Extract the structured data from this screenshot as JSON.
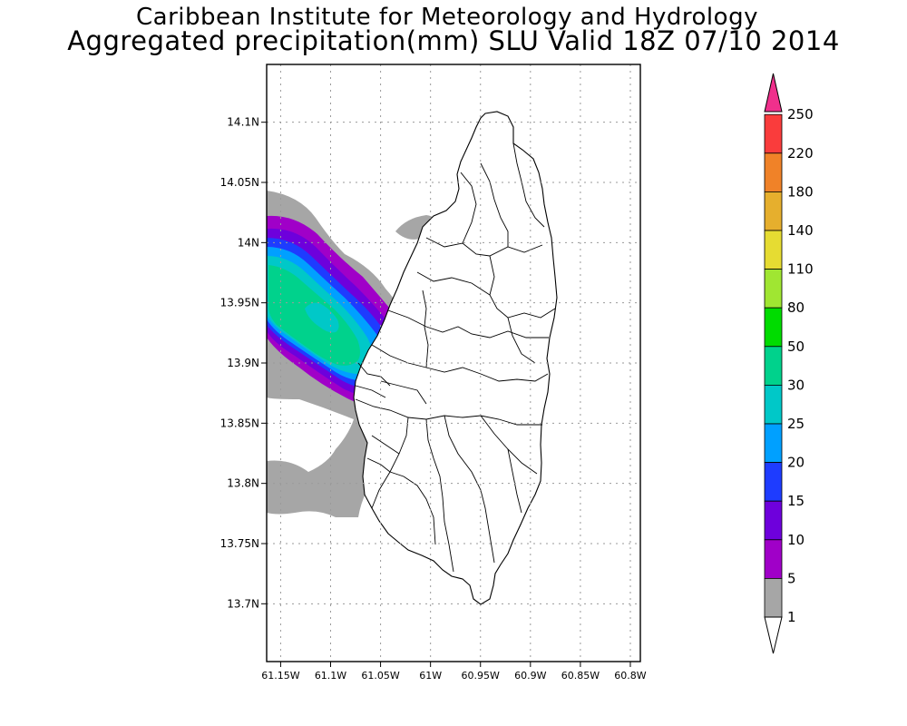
{
  "title": {
    "line1": "Caribbean Institute for Meteorology and Hydrology",
    "line2": "Aggregated precipitation(mm) SLU Valid 18Z 07/10 2014"
  },
  "map": {
    "lat_ticks": [
      "14.1N",
      "14.05N",
      "14N",
      "13.95N",
      "13.9N",
      "13.85N",
      "13.8N",
      "13.75N",
      "13.7N"
    ],
    "lon_ticks": [
      "61.15W",
      "61.1W",
      "61.05W",
      "61W",
      "60.95W",
      "60.9W",
      "60.85W",
      "60.8W"
    ],
    "lat_range": [
      13.652,
      14.148
    ],
    "lon_range": [
      61.164,
      60.79
    ],
    "grid": "dotted"
  },
  "colorbar": {
    "levels": [
      {
        "label": "1",
        "color": "#ffffff"
      },
      {
        "label": "5",
        "color": "#a6a6a6"
      },
      {
        "label": "10",
        "color": "#a000c8"
      },
      {
        "label": "15",
        "color": "#6e00dc"
      },
      {
        "label": "20",
        "color": "#1e3cff"
      },
      {
        "label": "25",
        "color": "#00a0ff"
      },
      {
        "label": "30",
        "color": "#00c8c8"
      },
      {
        "label": "50",
        "color": "#00d28c"
      },
      {
        "label": "80",
        "color": "#00dc00"
      },
      {
        "label": "110",
        "color": "#a0e632"
      },
      {
        "label": "140",
        "color": "#e6dc32"
      },
      {
        "label": "180",
        "color": "#e6af2d"
      },
      {
        "label": "220",
        "color": "#f08228"
      },
      {
        "label": "250",
        "color": "#fa3c3c"
      }
    ],
    "top_color": "#f0308c"
  },
  "colors": {
    "light_precip": "#a6a6a6",
    "land_fill": "#ffffff",
    "outline": "#000000"
  }
}
